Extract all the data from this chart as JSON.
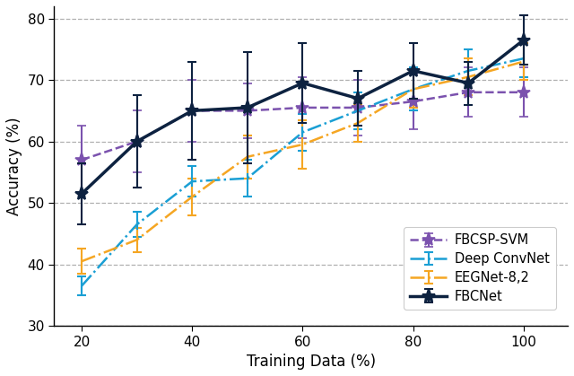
{
  "x": [
    20,
    30,
    40,
    50,
    60,
    70,
    80,
    90,
    100
  ],
  "fbcsp_mean": [
    57.0,
    60.0,
    65.0,
    65.0,
    65.5,
    65.5,
    66.5,
    68.0,
    68.0
  ],
  "fbcsp_err": [
    5.5,
    5.0,
    5.0,
    4.5,
    5.0,
    4.5,
    4.5,
    4.0,
    4.0
  ],
  "deep_mean": [
    36.5,
    46.5,
    53.5,
    54.0,
    61.5,
    65.0,
    68.5,
    71.5,
    73.5
  ],
  "deep_err": [
    1.5,
    2.0,
    2.5,
    3.0,
    3.0,
    3.0,
    3.5,
    3.5,
    3.0
  ],
  "eegnet_mean": [
    40.5,
    44.0,
    51.0,
    57.5,
    59.5,
    63.0,
    68.5,
    70.5,
    73.0
  ],
  "eegnet_err": [
    2.0,
    2.0,
    3.0,
    3.5,
    4.0,
    3.0,
    3.0,
    3.0,
    3.0
  ],
  "fbcnet_mean": [
    51.5,
    60.0,
    65.0,
    65.5,
    69.5,
    67.0,
    71.5,
    69.5,
    76.5
  ],
  "fbcnet_err": [
    5.0,
    7.5,
    8.0,
    9.0,
    6.5,
    4.5,
    4.5,
    3.5,
    4.0
  ],
  "fbcsp_color": "#7b52ae",
  "deep_color": "#1a9fd4",
  "eegnet_color": "#f5a623",
  "fbcnet_color": "#0d2240",
  "xlabel": "Training Data (%)",
  "ylabel": "Accuracy (%)",
  "ylim": [
    30,
    82
  ],
  "xlim": [
    15,
    108
  ],
  "yticks": [
    30,
    40,
    50,
    60,
    70,
    80
  ],
  "xticks": [
    20,
    40,
    60,
    80,
    100
  ],
  "legend_labels": [
    "FBCSP-SVM",
    "Deep ConvNet",
    "EEGNet-8,2",
    "FBCNet"
  ],
  "figsize": [
    6.4,
    4.19
  ],
  "dpi": 100
}
